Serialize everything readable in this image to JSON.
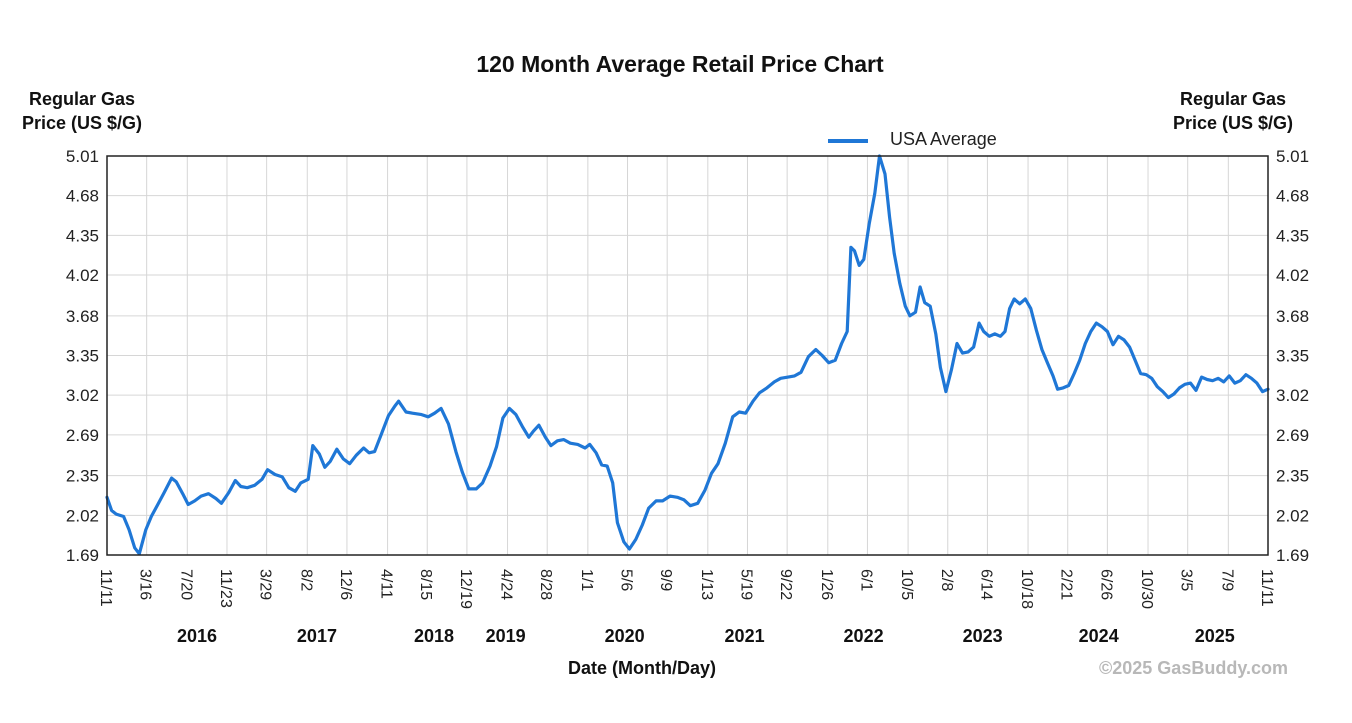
{
  "chart_data": {
    "type": "line",
    "title": "120 Month Average Retail Price Chart",
    "ylabel_left": [
      "Regular Gas",
      "Price (US $/G)"
    ],
    "ylabel_right": [
      "Regular Gas",
      "Price (US $/G)"
    ],
    "xlabel": "Date (Month/Day)",
    "copyright": "©2025 GasBuddy.com",
    "ylim": [
      1.69,
      5.01
    ],
    "y_ticks": [
      "5.01",
      "4.68",
      "4.35",
      "4.02",
      "3.68",
      "3.35",
      "3.02",
      "2.69",
      "2.35",
      "2.02",
      "1.69"
    ],
    "x_range": [
      0,
      120
    ],
    "x_ticks": [
      {
        "label": "11/11",
        "t": 0
      },
      {
        "label": "3/16",
        "t": 4.1
      },
      {
        "label": "7/20",
        "t": 8.3
      },
      {
        "label": "11/23",
        "t": 12.4
      },
      {
        "label": "3/29",
        "t": 16.5
      },
      {
        "label": "8/2",
        "t": 20.7
      },
      {
        "label": "12/6",
        "t": 24.8
      },
      {
        "label": "4/11",
        "t": 29.0
      },
      {
        "label": "8/15",
        "t": 33.1
      },
      {
        "label": "12/19",
        "t": 37.2
      },
      {
        "label": "4/24",
        "t": 41.4
      },
      {
        "label": "8/28",
        "t": 45.5
      },
      {
        "label": "1/1",
        "t": 49.7
      },
      {
        "label": "5/6",
        "t": 53.8
      },
      {
        "label": "9/9",
        "t": 57.9
      },
      {
        "label": "1/13",
        "t": 62.1
      },
      {
        "label": "5/19",
        "t": 66.2
      },
      {
        "label": "9/22",
        "t": 70.3
      },
      {
        "label": "1/26",
        "t": 74.5
      },
      {
        "label": "6/1",
        "t": 78.6
      },
      {
        "label": "10/5",
        "t": 82.8
      },
      {
        "label": "2/8",
        "t": 86.9
      },
      {
        "label": "6/14",
        "t": 91.0
      },
      {
        "label": "10/18",
        "t": 95.2
      },
      {
        "label": "2/21",
        "t": 99.3
      },
      {
        "label": "6/26",
        "t": 103.4
      },
      {
        "label": "10/30",
        "t": 107.6
      },
      {
        "label": "3/5",
        "t": 111.7
      },
      {
        "label": "7/9",
        "t": 115.9
      },
      {
        "label": "11/11",
        "t": 120
      }
    ],
    "year_labels": [
      {
        "label": "2016",
        "t": 9.3
      },
      {
        "label": "2017",
        "t": 21.7
      },
      {
        "label": "2018",
        "t": 33.8
      },
      {
        "label": "2019",
        "t": 41.2
      },
      {
        "label": "2020",
        "t": 53.5
      },
      {
        "label": "2021",
        "t": 65.9
      },
      {
        "label": "2022",
        "t": 78.2
      },
      {
        "label": "2023",
        "t": 90.5
      },
      {
        "label": "2024",
        "t": 102.5
      },
      {
        "label": "2025",
        "t": 114.5
      }
    ],
    "legend": "top-right",
    "series": [
      {
        "name": "USA Average",
        "color": "#1f77d6",
        "points": [
          [
            0,
            2.17
          ],
          [
            0.5,
            2.06
          ],
          [
            1.0,
            2.03
          ],
          [
            1.8,
            2.01
          ],
          [
            2.4,
            1.9
          ],
          [
            3.0,
            1.75
          ],
          [
            3.5,
            1.7
          ],
          [
            4.2,
            1.9
          ],
          [
            4.8,
            2.01
          ],
          [
            5.5,
            2.11
          ],
          [
            6.2,
            2.21
          ],
          [
            7.0,
            2.33
          ],
          [
            7.5,
            2.3
          ],
          [
            8.2,
            2.2
          ],
          [
            8.8,
            2.11
          ],
          [
            9.5,
            2.14
          ],
          [
            10.2,
            2.18
          ],
          [
            11.0,
            2.2
          ],
          [
            11.8,
            2.16
          ],
          [
            12.4,
            2.12
          ],
          [
            13.2,
            2.21
          ],
          [
            13.9,
            2.31
          ],
          [
            14.5,
            2.26
          ],
          [
            15.2,
            2.25
          ],
          [
            16.0,
            2.27
          ],
          [
            16.8,
            2.32
          ],
          [
            17.4,
            2.4
          ],
          [
            18.2,
            2.36
          ],
          [
            19.0,
            2.34
          ],
          [
            19.7,
            2.25
          ],
          [
            20.4,
            2.22
          ],
          [
            21.0,
            2.29
          ],
          [
            21.8,
            2.32
          ],
          [
            22.3,
            2.6
          ],
          [
            23.0,
            2.53
          ],
          [
            23.6,
            2.42
          ],
          [
            24.2,
            2.47
          ],
          [
            24.9,
            2.57
          ],
          [
            25.6,
            2.49
          ],
          [
            26.3,
            2.45
          ],
          [
            27.0,
            2.52
          ],
          [
            27.8,
            2.58
          ],
          [
            28.4,
            2.54
          ],
          [
            29.0,
            2.55
          ],
          [
            29.7,
            2.69
          ],
          [
            30.5,
            2.85
          ],
          [
            31.2,
            2.93
          ],
          [
            31.6,
            2.97
          ],
          [
            32.4,
            2.88
          ],
          [
            33.1,
            2.87
          ],
          [
            34.0,
            2.86
          ],
          [
            34.8,
            2.84
          ],
          [
            35.5,
            2.87
          ],
          [
            36.2,
            2.91
          ],
          [
            37.0,
            2.78
          ],
          [
            37.8,
            2.55
          ],
          [
            38.5,
            2.38
          ],
          [
            39.2,
            2.24
          ],
          [
            40.0,
            2.24
          ],
          [
            40.7,
            2.29
          ],
          [
            41.5,
            2.43
          ],
          [
            42.2,
            2.59
          ],
          [
            42.9,
            2.83
          ],
          [
            43.6,
            2.91
          ],
          [
            44.3,
            2.86
          ],
          [
            45.0,
            2.76
          ],
          [
            45.7,
            2.67
          ],
          [
            46.2,
            2.72
          ],
          [
            46.8,
            2.77
          ],
          [
            47.5,
            2.67
          ],
          [
            48.1,
            2.6
          ],
          [
            48.8,
            2.64
          ],
          [
            49.5,
            2.65
          ],
          [
            50.2,
            2.62
          ],
          [
            51.0,
            2.61
          ],
          [
            51.8,
            2.58
          ],
          [
            52.3,
            2.61
          ],
          [
            53.0,
            2.54
          ],
          [
            53.6,
            2.44
          ],
          [
            54.2,
            2.43
          ],
          [
            54.8,
            2.29
          ],
          [
            55.3,
            1.96
          ],
          [
            56.0,
            1.8
          ],
          [
            56.6,
            1.74
          ],
          [
            57.3,
            1.82
          ],
          [
            58.0,
            1.94
          ],
          [
            58.7,
            2.08
          ],
          [
            59.5,
            2.14
          ],
          [
            60.2,
            2.14
          ],
          [
            61.0,
            2.18
          ],
          [
            61.8,
            2.17
          ],
          [
            62.5,
            2.15
          ],
          [
            63.2,
            2.1
          ],
          [
            64.0,
            2.12
          ],
          [
            64.8,
            2.23
          ],
          [
            65.5,
            2.37
          ],
          [
            66.2,
            2.45
          ],
          [
            67.0,
            2.62
          ],
          [
            67.8,
            2.84
          ],
          [
            68.5,
            2.88
          ],
          [
            69.2,
            2.87
          ],
          [
            70.0,
            2.97
          ],
          [
            70.7,
            3.04
          ],
          [
            71.5,
            3.08
          ],
          [
            72.3,
            3.13
          ],
          [
            73.0,
            3.16
          ],
          [
            73.8,
            3.17
          ],
          [
            74.5,
            3.18
          ],
          [
            75.2,
            3.21
          ],
          [
            76.0,
            3.34
          ],
          [
            76.8,
            3.4
          ],
          [
            77.5,
            3.35
          ],
          [
            78.2,
            3.29
          ],
          [
            78.9,
            3.31
          ],
          [
            79.6,
            3.45
          ],
          [
            80.2,
            3.55
          ],
          [
            80.6,
            4.25
          ],
          [
            81.0,
            4.22
          ],
          [
            81.5,
            4.1
          ],
          [
            82.0,
            4.15
          ],
          [
            82.6,
            4.45
          ],
          [
            83.2,
            4.7
          ],
          [
            83.7,
            5.01
          ],
          [
            84.3,
            4.86
          ],
          [
            84.8,
            4.5
          ],
          [
            85.3,
            4.2
          ],
          [
            85.9,
            3.95
          ],
          [
            86.5,
            3.76
          ],
          [
            87.0,
            3.68
          ],
          [
            87.6,
            3.71
          ],
          [
            88.1,
            3.92
          ],
          [
            88.6,
            3.79
          ],
          [
            89.2,
            3.76
          ],
          [
            89.8,
            3.53
          ],
          [
            90.3,
            3.25
          ],
          [
            90.9,
            3.05
          ],
          [
            91.5,
            3.23
          ],
          [
            92.1,
            3.45
          ],
          [
            92.7,
            3.37
          ],
          [
            93.3,
            3.38
          ],
          [
            93.9,
            3.42
          ],
          [
            94.5,
            3.62
          ],
          [
            95.0,
            3.55
          ],
          [
            95.6,
            3.51
          ],
          [
            96.2,
            3.53
          ],
          [
            96.8,
            3.51
          ],
          [
            97.3,
            3.55
          ],
          [
            97.8,
            3.74
          ],
          [
            98.3,
            3.82
          ],
          [
            98.9,
            3.78
          ],
          [
            99.5,
            3.82
          ],
          [
            100.1,
            3.74
          ],
          [
            100.7,
            3.56
          ],
          [
            101.3,
            3.4
          ],
          [
            101.9,
            3.29
          ],
          [
            102.5,
            3.18
          ],
          [
            103.0,
            3.07
          ],
          [
            103.6,
            3.08
          ],
          [
            104.2,
            3.1
          ],
          [
            104.8,
            3.2
          ],
          [
            105.4,
            3.31
          ],
          [
            106.0,
            3.45
          ],
          [
            106.6,
            3.55
          ],
          [
            107.2,
            3.62
          ],
          [
            107.8,
            3.59
          ],
          [
            108.4,
            3.55
          ],
          [
            109.0,
            3.44
          ],
          [
            109.6,
            3.51
          ],
          [
            110.2,
            3.48
          ],
          [
            110.8,
            3.42
          ],
          [
            111.4,
            3.31
          ],
          [
            112.0,
            3.2
          ],
          [
            112.6,
            3.19
          ],
          [
            113.2,
            3.16
          ],
          [
            113.8,
            3.09
          ],
          [
            114.4,
            3.05
          ],
          [
            115.0,
            3.0
          ],
          [
            115.6,
            3.03
          ],
          [
            116.2,
            3.08
          ],
          [
            116.8,
            3.11
          ],
          [
            117.4,
            3.12
          ],
          [
            118.0,
            3.06
          ],
          [
            118.6,
            3.17
          ],
          [
            119.2,
            3.15
          ],
          [
            119.8,
            3.14
          ],
          [
            120.4,
            3.16
          ],
          [
            121.0,
            3.13
          ],
          [
            121.6,
            3.18
          ],
          [
            122.2,
            3.12
          ],
          [
            122.8,
            3.14
          ],
          [
            123.4,
            3.19
          ],
          [
            124.0,
            3.16
          ],
          [
            124.6,
            3.12
          ],
          [
            125.2,
            3.05
          ],
          [
            125.8,
            3.07
          ]
        ]
      }
    ]
  }
}
